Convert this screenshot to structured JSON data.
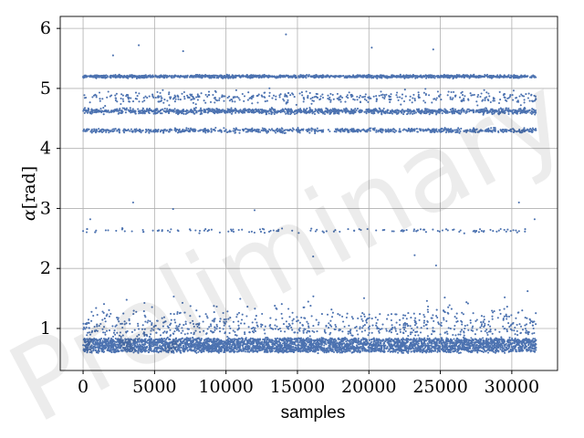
{
  "chart_data": {
    "type": "scatter",
    "title": "",
    "xlabel": "samples",
    "ylabel_var": "α",
    "ylabel_unit": "[rad]",
    "xlim": [
      -1600,
      33200
    ],
    "ylim": [
      0.3,
      6.2
    ],
    "x_ticks": [
      0,
      5000,
      10000,
      15000,
      20000,
      25000,
      30000
    ],
    "y_ticks": [
      1,
      2,
      3,
      4,
      5,
      6
    ],
    "grid": true,
    "legend": "none",
    "n_samples": 31700,
    "marker_color": "#4c72b0",
    "watermark": "Preliminary",
    "bands": [
      {
        "center": 0.72,
        "spread": 0.16,
        "weight": 0.46
      },
      {
        "center": 1.1,
        "spread": 0.45,
        "weight": 0.08
      },
      {
        "center": 2.63,
        "spread": 0.06,
        "weight": 0.015
      },
      {
        "center": 4.3,
        "spread": 0.06,
        "weight": 0.09
      },
      {
        "center": 4.62,
        "spread": 0.07,
        "weight": 0.14
      },
      {
        "center": 4.85,
        "spread": 0.18,
        "weight": 0.05
      },
      {
        "center": 5.2,
        "spread": 0.04,
        "weight": 0.16
      }
    ],
    "outliers": [
      {
        "x": 3500,
        "y": 3.1
      },
      {
        "x": 30500,
        "y": 3.1
      },
      {
        "x": 14200,
        "y": 5.9
      },
      {
        "x": 3900,
        "y": 5.72
      },
      {
        "x": 7000,
        "y": 5.62
      },
      {
        "x": 20200,
        "y": 5.68
      },
      {
        "x": 24500,
        "y": 5.65
      },
      {
        "x": 2100,
        "y": 5.55
      },
      {
        "x": 12000,
        "y": 2.97
      },
      {
        "x": 6300,
        "y": 2.99
      },
      {
        "x": 16100,
        "y": 2.2
      },
      {
        "x": 24700,
        "y": 2.05
      },
      {
        "x": 500,
        "y": 2.82
      },
      {
        "x": 31600,
        "y": 2.82
      },
      {
        "x": 23200,
        "y": 2.22
      }
    ]
  }
}
